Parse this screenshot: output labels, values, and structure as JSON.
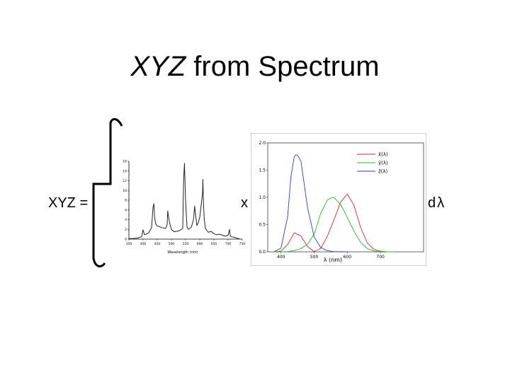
{
  "slide": {
    "title_italic": "XYZ",
    "title_rest": " from Spectrum",
    "lhs": "XYZ =",
    "times": "x",
    "differential": "dλ"
  },
  "chart_data": [
    {
      "type": "line",
      "xlabel": "Wavelength (nm)",
      "ylabel": "",
      "xlim": [
        350,
        750
      ],
      "ylim": [
        0,
        16
      ],
      "x_ticks": [
        "350",
        "400",
        "450",
        "500",
        "550",
        "600",
        "650",
        "700",
        "750"
      ],
      "y_ticks": [
        "0",
        "2",
        "4",
        "6",
        "8",
        "10",
        "12",
        "14",
        "16"
      ],
      "series": [
        {
          "color": "#222222",
          "x": [
            350,
            360,
            380,
            395,
            400,
            405,
            410,
            420,
            430,
            435,
            438,
            441,
            445,
            450,
            460,
            470,
            480,
            485,
            487,
            490,
            495,
            500,
            510,
            520,
            530,
            540,
            543,
            546,
            550,
            555,
            560,
            570,
            578,
            582,
            586,
            590,
            595,
            600,
            605,
            610,
            611,
            613,
            616,
            620,
            630,
            640,
            650,
            660,
            670,
            680,
            690,
            700,
            705,
            707,
            710,
            720,
            730,
            740
          ],
          "y": [
            0.1,
            0.1,
            0.2,
            0.5,
            1.9,
            0.9,
            1.0,
            1.3,
            2.4,
            6.5,
            7.3,
            4.2,
            3.1,
            2.7,
            2.5,
            2.3,
            2.2,
            3.0,
            5.8,
            4.5,
            3.0,
            2.0,
            1.5,
            1.6,
            1.8,
            2.2,
            12.0,
            15.6,
            8.0,
            2.5,
            2.0,
            2.4,
            4.0,
            6.8,
            4.6,
            2.8,
            3.4,
            4.5,
            7.0,
            9.6,
            12.3,
            7.5,
            4.0,
            2.2,
            1.4,
            1.6,
            1.1,
            0.9,
            1.0,
            0.8,
            0.6,
            0.8,
            2.0,
            0.9,
            0.5,
            0.4,
            0.2,
            0.1
          ]
        }
      ]
    },
    {
      "type": "line",
      "xlabel": "λ (nm)",
      "ylabel": "",
      "xlim": [
        360,
        830
      ],
      "ylim": [
        0,
        2.0
      ],
      "x_ticks": [
        "400",
        "500",
        "600",
        "700"
      ],
      "y_ticks": [
        "0.0",
        "0.5",
        "1.0",
        "1.5",
        "2.0"
      ],
      "legend": "top-right",
      "legend_entries": [
        "x̄(λ)",
        "ȳ(λ)",
        "z̄(λ)"
      ],
      "series": [
        {
          "legend_label": "x̄(λ)",
          "color": "#cc2a3a",
          "x": [
            380,
            400,
            420,
            440,
            460,
            480,
            500,
            520,
            540,
            560,
            580,
            600,
            620,
            640,
            660,
            680,
            700,
            720,
            740
          ],
          "y": [
            0.0,
            0.014,
            0.134,
            0.348,
            0.291,
            0.096,
            0.005,
            0.063,
            0.29,
            0.595,
            0.916,
            1.062,
            0.854,
            0.448,
            0.165,
            0.047,
            0.011,
            0.003,
            0.001
          ]
        },
        {
          "legend_label": "ȳ(λ)",
          "color": "#22bb22",
          "x": [
            380,
            400,
            420,
            440,
            460,
            480,
            500,
            520,
            540,
            555,
            560,
            580,
            600,
            620,
            640,
            660,
            680,
            700,
            720,
            740
          ],
          "y": [
            0.0,
            0.0004,
            0.004,
            0.023,
            0.06,
            0.139,
            0.323,
            0.71,
            0.954,
            1.0,
            0.995,
            0.87,
            0.631,
            0.381,
            0.175,
            0.061,
            0.017,
            0.004,
            0.001,
            0.0
          ]
        },
        {
          "legend_label": "z̄(λ)",
          "color": "#2244bb",
          "x": [
            380,
            400,
            420,
            430,
            440,
            445,
            450,
            460,
            480,
            500,
            520,
            540,
            560,
            580,
            600
          ],
          "y": [
            0.006,
            0.068,
            0.646,
            1.386,
            1.747,
            1.783,
            1.772,
            1.669,
            0.813,
            0.272,
            0.078,
            0.02,
            0.004,
            0.002,
            0.001
          ]
        }
      ]
    }
  ]
}
